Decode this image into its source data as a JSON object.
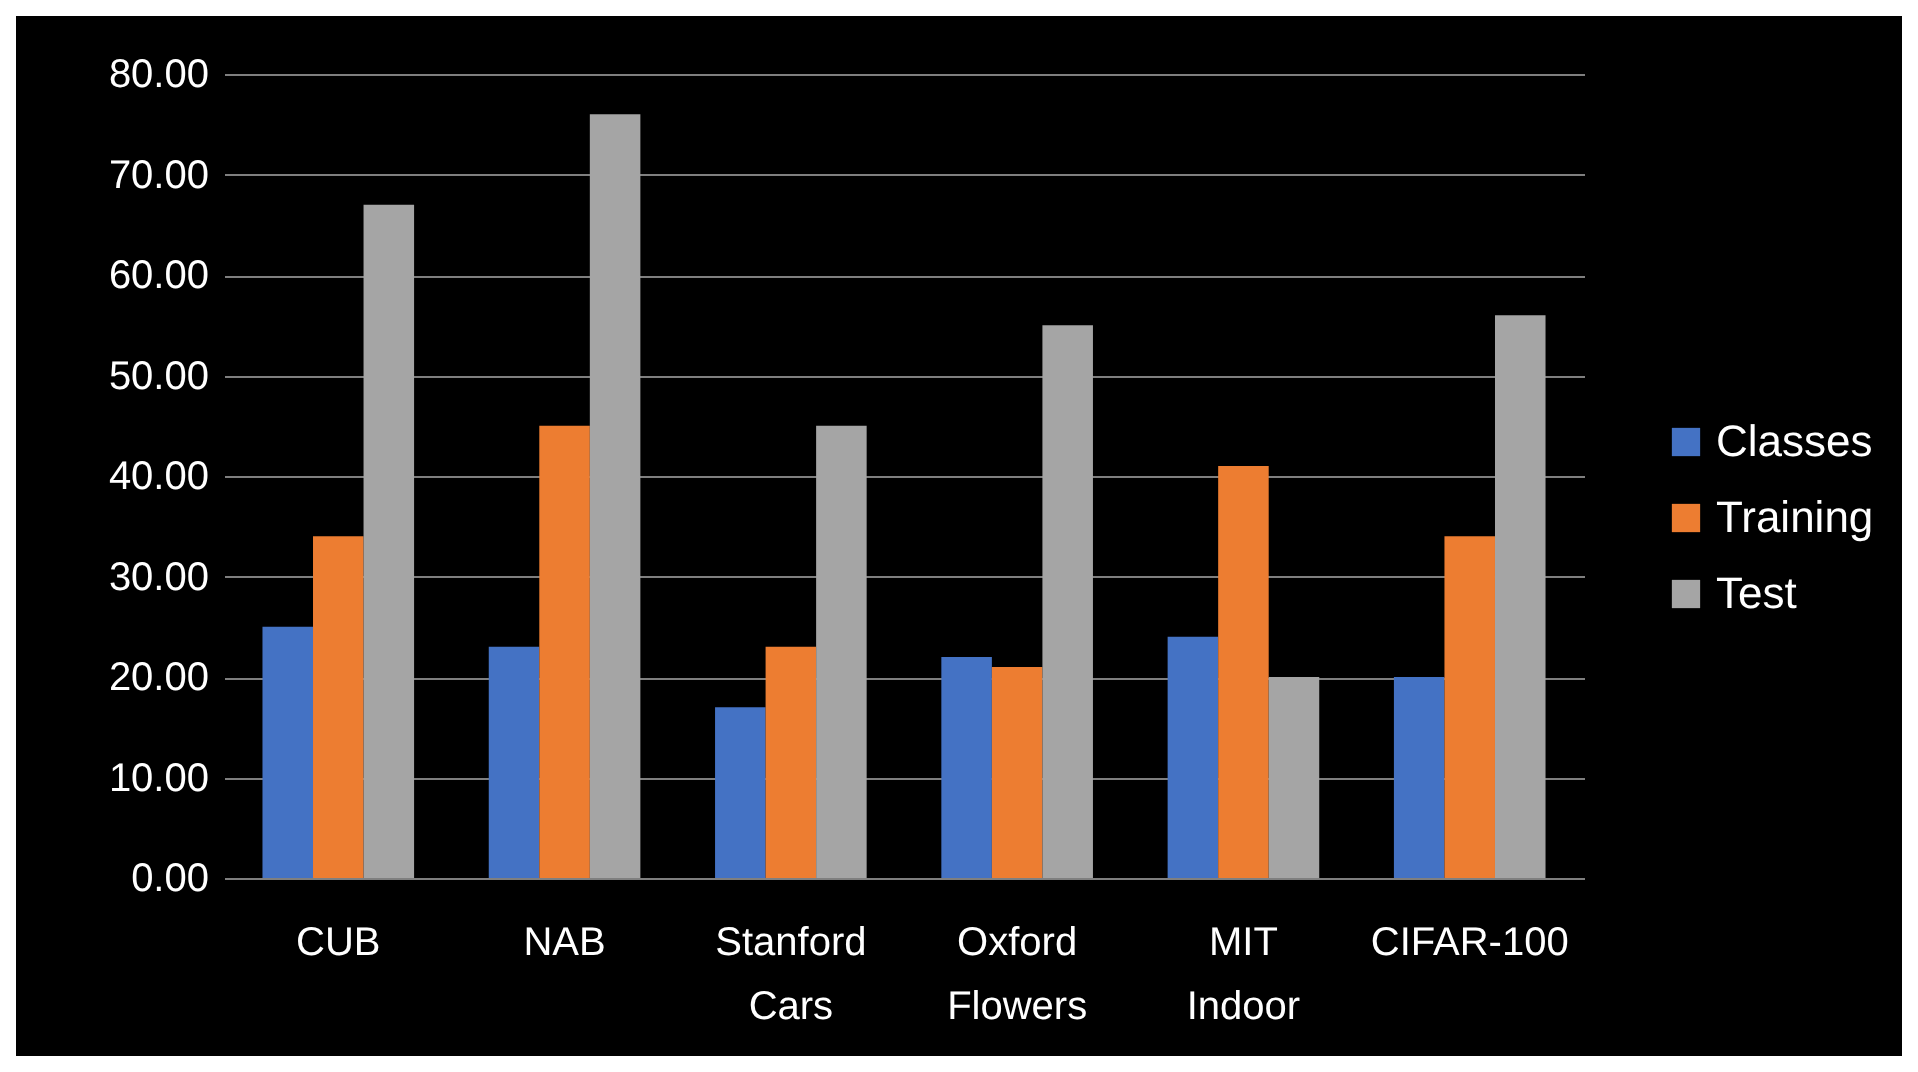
{
  "chart_data": {
    "type": "bar",
    "categories": [
      "CUB",
      "NAB",
      "Stanford Cars",
      "Oxford Flowers",
      "MIT Indoor",
      "CIFAR-100"
    ],
    "series": [
      {
        "name": "Classes",
        "color": "#4472c4",
        "values": [
          25,
          23,
          17,
          22,
          24,
          20
        ]
      },
      {
        "name": "Training",
        "color": "#ed7d31",
        "values": [
          34,
          45,
          23,
          21,
          41,
          34
        ]
      },
      {
        "name": "Test",
        "color": "#a5a5a5",
        "values": [
          67,
          76,
          45,
          55,
          20,
          56
        ]
      }
    ],
    "ylim": [
      0,
      80
    ],
    "yticks": [
      {
        "value": 0,
        "label": "0.00"
      },
      {
        "value": 10,
        "label": "10.00"
      },
      {
        "value": 20,
        "label": "20.00"
      },
      {
        "value": 30,
        "label": "30.00"
      },
      {
        "value": 40,
        "label": "40.00"
      },
      {
        "value": 50,
        "label": "50.00"
      },
      {
        "value": 60,
        "label": "60.00"
      },
      {
        "value": 70,
        "label": "70.00"
      },
      {
        "value": 80,
        "label": "80.00"
      }
    ],
    "grid": "y",
    "legend": "right"
  }
}
